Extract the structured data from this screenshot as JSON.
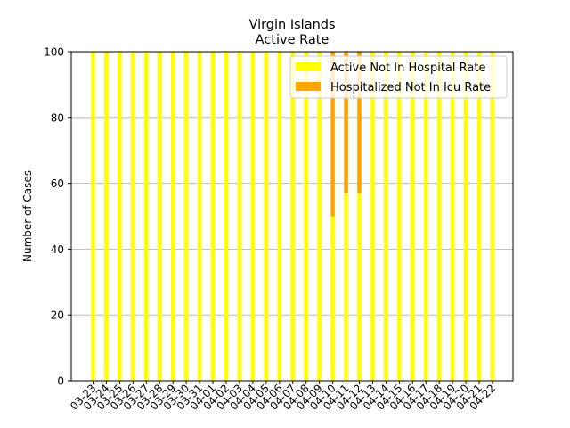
{
  "chart_data": {
    "type": "bar",
    "stacked": true,
    "title": [
      "Virgin Islands",
      "Active Rate"
    ],
    "xlabel": "",
    "ylabel": "Number of Cases",
    "ylim": [
      0,
      100
    ],
    "yticks": [
      0,
      20,
      40,
      60,
      80,
      100
    ],
    "grid": "y",
    "legend_position": "top-right",
    "categories": [
      "03-23",
      "03-24",
      "03-25",
      "03-26",
      "03-27",
      "03-28",
      "03-29",
      "03-30",
      "03-31",
      "04-01",
      "04-02",
      "04-03",
      "04-04",
      "04-05",
      "04-06",
      "04-07",
      "04-08",
      "04-09",
      "04-10",
      "04-11",
      "04-12",
      "04-13",
      "04-14",
      "04-15",
      "04-16",
      "04-17",
      "04-18",
      "04-19",
      "04-20",
      "04-21",
      "04-22"
    ],
    "series": [
      {
        "name": "Active Not In Hospital Rate",
        "color": "#ffff00",
        "values": [
          100,
          100,
          100,
          100,
          100,
          100,
          100,
          100,
          100,
          100,
          100,
          100,
          100,
          100,
          100,
          100,
          100,
          100,
          50,
          57,
          57,
          100,
          100,
          100,
          100,
          100,
          100,
          100,
          100,
          100,
          100
        ]
      },
      {
        "name": "Hospitalized Not In Icu Rate",
        "color": "#ffa500",
        "values": [
          0,
          0,
          0,
          0,
          0,
          0,
          0,
          0,
          0,
          0,
          0,
          0,
          0,
          0,
          0,
          0,
          0,
          0,
          50,
          43,
          43,
          0,
          0,
          0,
          0,
          0,
          0,
          0,
          0,
          0,
          0
        ]
      }
    ]
  }
}
